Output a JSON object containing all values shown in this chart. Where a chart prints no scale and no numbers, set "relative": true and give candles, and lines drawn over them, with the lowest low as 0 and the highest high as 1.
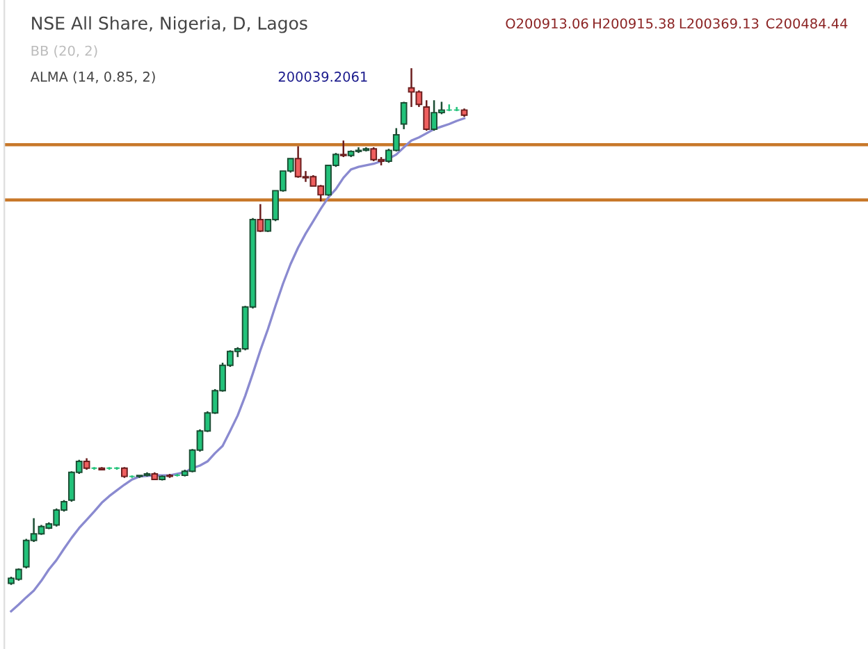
{
  "chart_data": {
    "type": "candlestick",
    "title": "NSE All Share, Nigeria, D, Lagos",
    "relative": true,
    "grid": false,
    "categories": [
      null,
      null,
      null,
      null,
      null,
      null,
      null,
      null,
      null,
      null,
      null,
      null,
      null,
      null,
      null,
      null,
      null,
      null,
      null,
      null,
      null,
      null,
      null,
      null,
      null,
      null,
      null,
      null,
      null,
      null,
      null,
      null,
      null,
      null,
      null,
      null,
      null,
      null,
      null,
      null,
      null,
      null,
      null,
      null,
      null,
      null,
      null,
      null,
      null,
      null,
      null,
      null,
      null,
      null,
      null,
      null,
      null,
      null,
      null,
      null,
      null
    ],
    "ohlc": [
      [
        0.003,
        0.016,
        0,
        0.013
      ],
      [
        0.011,
        0.032,
        0.008,
        0.03
      ],
      [
        0.035,
        0.089,
        0.032,
        0.086
      ],
      [
        0.086,
        0.129,
        0.083,
        0.099
      ],
      [
        0.099,
        0.116,
        0.097,
        0.113
      ],
      [
        0.11,
        0.121,
        0.108,
        0.118
      ],
      [
        0.116,
        0.148,
        0.113,
        0.145
      ],
      [
        0.145,
        0.164,
        0.142,
        0.161
      ],
      [
        0.164,
        0.22,
        0.161,
        0.218
      ],
      [
        0.218,
        0.242,
        0.215,
        0.239
      ],
      [
        0.239,
        0.245,
        0.223,
        0.226
      ],
      [
        0.226,
        0.228,
        0.223,
        0.226
      ],
      [
        0.226,
        0.228,
        0.223,
        0.223
      ],
      [
        0.226,
        0.228,
        0.223,
        0.226
      ],
      [
        0.226,
        0.228,
        0.223,
        0.226
      ],
      [
        0.226,
        0.228,
        0.207,
        0.21
      ],
      [
        0.21,
        0.212,
        0.207,
        0.21
      ],
      [
        0.21,
        0.212,
        0.207,
        0.212
      ],
      [
        0.212,
        0.218,
        0.21,
        0.215
      ],
      [
        0.215,
        0.218,
        0.204,
        0.204
      ],
      [
        0.204,
        0.212,
        0.202,
        0.21
      ],
      [
        0.212,
        0.215,
        0.207,
        0.21
      ],
      [
        0.212,
        0.215,
        0.21,
        0.212
      ],
      [
        0.212,
        0.223,
        0.21,
        0.22
      ],
      [
        0.22,
        0.263,
        0.218,
        0.261
      ],
      [
        0.261,
        0.301,
        0.258,
        0.298
      ],
      [
        0.298,
        0.336,
        0.296,
        0.333
      ],
      [
        0.333,
        0.379,
        0.331,
        0.376
      ],
      [
        0.376,
        0.43,
        0.374,
        0.425
      ],
      [
        0.425,
        0.454,
        0.422,
        0.452
      ],
      [
        0.452,
        0.46,
        0.441,
        0.457
      ],
      [
        0.457,
        0.54,
        0.454,
        0.538
      ],
      [
        0.538,
        0.71,
        0.535,
        0.707
      ],
      [
        0.707,
        0.737,
        0.683,
        0.685
      ],
      [
        0.685,
        0.707,
        0.683,
        0.707
      ],
      [
        0.707,
        0.763,
        0.704,
        0.763
      ],
      [
        0.763,
        0.801,
        0.761,
        0.801
      ],
      [
        0.801,
        0.825,
        0.798,
        0.825
      ],
      [
        0.825,
        0.849,
        0.788,
        0.79
      ],
      [
        0.79,
        0.801,
        0.78,
        0.788
      ],
      [
        0.79,
        0.793,
        0.772,
        0.772
      ],
      [
        0.772,
        0.774,
        0.742,
        0.755
      ],
      [
        0.755,
        0.812,
        0.753,
        0.812
      ],
      [
        0.812,
        0.836,
        0.809,
        0.833
      ],
      [
        0.833,
        0.86,
        0.828,
        0.831
      ],
      [
        0.831,
        0.841,
        0.828,
        0.839
      ],
      [
        0.839,
        0.847,
        0.836,
        0.841
      ],
      [
        0.841,
        0.847,
        0.839,
        0.844
      ],
      [
        0.844,
        0.847,
        0.82,
        0.823
      ],
      [
        0.823,
        0.828,
        0.812,
        0.82
      ],
      [
        0.82,
        0.844,
        0.817,
        0.841
      ],
      [
        0.841,
        0.884,
        0.839,
        0.871
      ],
      [
        0.892,
        0.935,
        0.882,
        0.933
      ],
      [
        0.962,
        1,
        0.925,
        0.954
      ],
      [
        0.954,
        0.957,
        0.925,
        0.93
      ],
      [
        0.925,
        0.938,
        0.879,
        0.882
      ],
      [
        0.882,
        0.938,
        0.879,
        0.914
      ],
      [
        0.914,
        0.935,
        0.911,
        0.919
      ],
      [
        0.919,
        0.93,
        0.917,
        0.919
      ],
      [
        0.919,
        0.925,
        0.917,
        0.919
      ],
      [
        0.919,
        0.922,
        0.906,
        0.909
      ]
    ],
    "colors": [
      "#22c27a",
      "#22c27a",
      "#22c27a",
      "#22c27a",
      "#22c27a",
      "#22c27a",
      "#22c27a",
      "#22c27a",
      "#22c27a",
      "#22c27a",
      "#ef5f5f",
      "#22c27a",
      "#ef5f5f",
      "#22c27a",
      "#22c27a",
      "#ef5f5f",
      "#22c27a",
      "#22c27a",
      "#22c27a",
      "#ef5f5f",
      "#22c27a",
      "#ef5f5f",
      "#22c27a",
      "#22c27a",
      "#22c27a",
      "#22c27a",
      "#22c27a",
      "#22c27a",
      "#22c27a",
      "#22c27a",
      "#22c27a",
      "#22c27a",
      "#22c27a",
      "#ef5f5f",
      "#22c27a",
      "#22c27a",
      "#22c27a",
      "#22c27a",
      "#ef5f5f",
      "#ef5f5f",
      "#ef5f5f",
      "#ef5f5f",
      "#22c27a",
      "#22c27a",
      "#ef5f5f",
      "#22c27a",
      "#22c27a",
      "#22c27a",
      "#ef5f5f",
      "#ef5f5f",
      "#22c27a",
      "#22c27a",
      "#22c27a",
      "#ef5f5f",
      "#ef5f5f",
      "#ef5f5f",
      "#22c27a",
      "#22c27a",
      "#22c27a",
      "#22c27a",
      "#ef5f5f"
    ],
    "series": [
      {
        "type": "line",
        "color": "#8a8ad0",
        "values": [
          -0.051,
          -0.038,
          -0.024,
          -0.011,
          0.008,
          0.03,
          0.048,
          0.07,
          0.091,
          0.11,
          0.126,
          0.142,
          0.159,
          0.172,
          0.183,
          0.194,
          0.204,
          0.21,
          0.211,
          0.212,
          0.212,
          0.212,
          0.215,
          0.218,
          0.226,
          0.231,
          0.239,
          0.255,
          0.269,
          0.298,
          0.328,
          0.366,
          0.409,
          0.454,
          0.495,
          0.54,
          0.583,
          0.621,
          0.653,
          0.68,
          0.704,
          0.728,
          0.75,
          0.766,
          0.788,
          0.804,
          0.809,
          0.812,
          0.815,
          0.82,
          0.825,
          0.833,
          0.847,
          0.86,
          0.866,
          0.874,
          0.882,
          0.887,
          0.892,
          0.898,
          0.903
        ]
      }
    ],
    "ref_lines": [
      {
        "axis": "y",
        "value": 0.852,
        "color": "#c8782a"
      },
      {
        "axis": "y",
        "value": 0.745,
        "color": "#c8782a"
      }
    ],
    "annotations": [
      "O200913.06",
      "H200915.38",
      "L200369.13",
      "C200484.44",
      "BB (20, 2)",
      "ALMA (14, 0.85, 2)",
      "200039.2061"
    ]
  }
}
